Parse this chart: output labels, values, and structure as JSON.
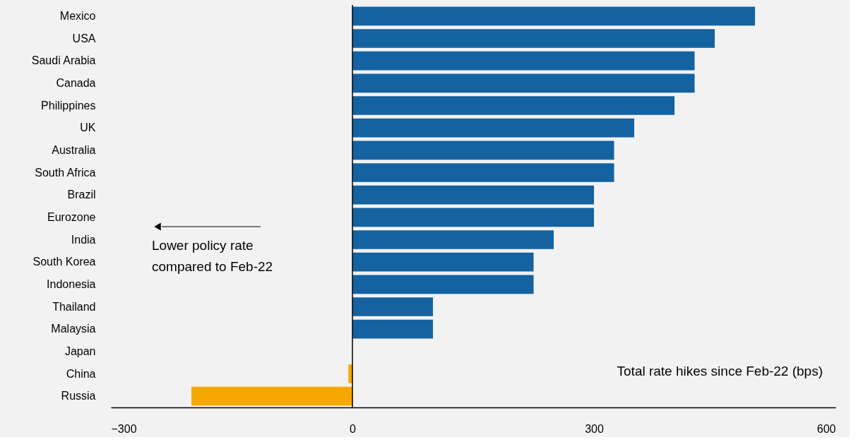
{
  "chart_data": {
    "type": "bar",
    "orientation": "horizontal",
    "categories": [
      "Mexico",
      "USA",
      "Saudi Arabia",
      "Canada",
      "Philippines",
      "UK",
      "Australia",
      "South Africa",
      "Brazil",
      "Eurozone",
      "India",
      "South Korea",
      "Indonesia",
      "Thailand",
      "Malaysia",
      "Japan",
      "China",
      "Russia"
    ],
    "values": [
      500,
      450,
      425,
      425,
      400,
      350,
      325,
      325,
      300,
      300,
      250,
      225,
      225,
      100,
      100,
      0,
      -5,
      -200
    ],
    "colors": [
      "#1462a0",
      "#1462a0",
      "#1462a0",
      "#1462a0",
      "#1462a0",
      "#1462a0",
      "#1462a0",
      "#1462a0",
      "#1462a0",
      "#1462a0",
      "#1462a0",
      "#1462a0",
      "#1462a0",
      "#1462a0",
      "#1462a0",
      "#1462a0",
      "#f7a800",
      "#f7a800"
    ],
    "xlim": [
      -300,
      600
    ],
    "xticks": [
      -300,
      0,
      300,
      600
    ],
    "grid": false,
    "ref_lines": [
      {
        "axis": "x",
        "value": 0,
        "color": "#000000"
      }
    ],
    "annotations": [
      "Lower policy rate\ncompared to Feb-22",
      "Total rate hikes since Feb-22 (bps)"
    ]
  }
}
